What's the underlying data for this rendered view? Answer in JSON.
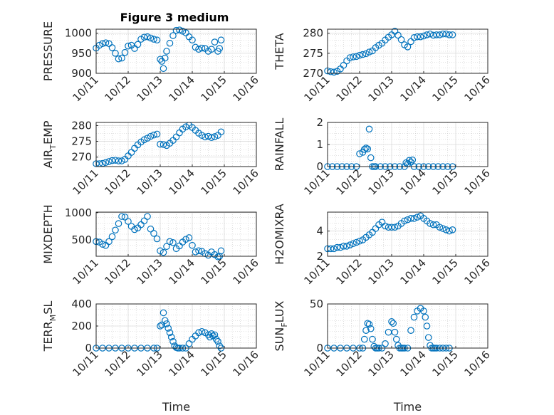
{
  "figure": {
    "title": "Figure 3 medium"
  },
  "marker_color": "#0072BD",
  "chart_data": [
    {
      "type": "scatter",
      "name": "pressure",
      "ylabel": "PRESSURE",
      "xlabel": "",
      "xlim": [
        0,
        5
      ],
      "ylim": [
        900,
        1010
      ],
      "yticks": [
        900,
        950,
        1000
      ],
      "xticks": [
        "10/11",
        "10/12",
        "10/13",
        "10/14",
        "10/15",
        "10/16"
      ],
      "x": [
        0.0,
        0.1,
        0.2,
        0.3,
        0.4,
        0.5,
        0.6,
        0.7,
        0.8,
        0.9,
        1.0,
        1.1,
        1.2,
        1.3,
        1.4,
        1.5,
        1.6,
        1.7,
        1.8,
        1.9,
        2.0,
        2.05,
        2.1,
        2.15,
        2.2,
        2.3,
        2.4,
        2.5,
        2.6,
        2.7,
        2.8,
        2.9,
        3.0,
        3.1,
        3.2,
        3.3,
        3.4,
        3.5,
        3.6,
        3.7,
        3.8,
        3.85,
        3.9
      ],
      "y": [
        963,
        970,
        974,
        976,
        974,
        964,
        950,
        936,
        938,
        952,
        968,
        970,
        962,
        972,
        985,
        990,
        991,
        988,
        985,
        983,
        935,
        930,
        912,
        938,
        955,
        975,
        994,
        1007,
        1008,
        1005,
        1001,
        991,
        983,
        965,
        960,
        963,
        962,
        955,
        960,
        978,
        955,
        962,
        983
      ]
    },
    {
      "type": "scatter",
      "name": "theta",
      "ylabel": "THETA",
      "xlabel": "",
      "xlim": [
        0,
        5
      ],
      "ylim": [
        270,
        281
      ],
      "yticks": [
        270,
        275,
        280
      ],
      "xticks": [
        "10/11",
        "10/12",
        "10/13",
        "10/14",
        "10/15",
        "10/16"
      ],
      "x": [
        0.0,
        0.1,
        0.2,
        0.3,
        0.4,
        0.5,
        0.6,
        0.7,
        0.8,
        0.9,
        1.0,
        1.1,
        1.2,
        1.3,
        1.4,
        1.5,
        1.6,
        1.7,
        1.8,
        1.9,
        2.0,
        2.1,
        2.2,
        2.3,
        2.4,
        2.5,
        2.6,
        2.7,
        2.8,
        2.9,
        3.0,
        3.1,
        3.2,
        3.3,
        3.4,
        3.5,
        3.6,
        3.7,
        3.8,
        3.9
      ],
      "y": [
        270.6,
        270.4,
        270.3,
        270.5,
        271.1,
        272.0,
        273.1,
        273.9,
        274.1,
        274.2,
        274.5,
        274.7,
        274.9,
        275.3,
        275.6,
        276.4,
        277.0,
        277.5,
        278.3,
        279.0,
        279.6,
        280.5,
        279.5,
        278.4,
        277.1,
        276.6,
        277.9,
        278.9,
        279.1,
        279.1,
        279.3,
        279.6,
        279.8,
        279.5,
        279.6,
        279.6,
        279.8,
        279.8,
        279.6,
        279.6
      ]
    },
    {
      "type": "scatter",
      "name": "air-temp",
      "ylabel": "AIR_TEMP",
      "xlabel": "",
      "xlim": [
        0,
        5
      ],
      "ylim": [
        267,
        281
      ],
      "yticks": [
        270,
        275,
        280
      ],
      "xticks": [
        "10/11",
        "10/12",
        "10/13",
        "10/14",
        "10/15",
        "10/16"
      ],
      "x": [
        0.0,
        0.1,
        0.2,
        0.3,
        0.4,
        0.5,
        0.6,
        0.7,
        0.8,
        0.9,
        1.0,
        1.1,
        1.2,
        1.3,
        1.4,
        1.5,
        1.6,
        1.7,
        1.8,
        1.9,
        2.0,
        2.1,
        2.2,
        2.3,
        2.4,
        2.5,
        2.6,
        2.7,
        2.8,
        2.9,
        3.0,
        3.1,
        3.2,
        3.3,
        3.4,
        3.5,
        3.6,
        3.7,
        3.8,
        3.9
      ],
      "y": [
        267.9,
        267.9,
        268.0,
        268.3,
        268.6,
        268.9,
        269.0,
        268.8,
        268.8,
        269.3,
        270.4,
        271.5,
        272.8,
        273.9,
        274.8,
        275.5,
        276.0,
        276.6,
        277.0,
        277.3,
        274.1,
        274.0,
        273.7,
        274.4,
        275.3,
        276.4,
        277.7,
        278.9,
        279.6,
        280.1,
        279.4,
        278.5,
        277.6,
        276.9,
        276.4,
        276.6,
        276.2,
        276.5,
        276.9,
        278.0
      ]
    },
    {
      "type": "scatter",
      "name": "rainfall",
      "ylabel": "RAINFALL",
      "xlabel": "",
      "xlim": [
        0,
        5
      ],
      "ylim": [
        0,
        2
      ],
      "yticks": [
        0,
        1,
        2
      ],
      "xticks": [
        "10/11",
        "10/12",
        "10/13",
        "10/14",
        "10/15",
        "10/16"
      ],
      "x": [
        0.0,
        0.15,
        0.3,
        0.45,
        0.6,
        0.75,
        0.9,
        1.0,
        1.1,
        1.15,
        1.2,
        1.25,
        1.3,
        1.35,
        1.4,
        1.45,
        1.5,
        1.65,
        1.8,
        1.95,
        2.1,
        2.25,
        2.4,
        2.45,
        2.5,
        2.55,
        2.6,
        2.65,
        2.7,
        2.85,
        3.0,
        3.15,
        3.3,
        3.45,
        3.6,
        3.75,
        3.9
      ],
      "y": [
        0,
        0,
        0,
        0,
        0,
        0,
        0,
        0.58,
        0.65,
        0.78,
        0.84,
        0.8,
        1.7,
        0.4,
        0,
        0,
        0,
        0,
        0,
        0,
        0,
        0,
        0,
        0.17,
        0.12,
        0.28,
        0.2,
        0.3,
        0,
        0,
        0,
        0,
        0,
        0,
        0,
        0,
        0
      ]
    },
    {
      "type": "scatter",
      "name": "mixdepth",
      "ylabel": "MIXDEPTH",
      "xlabel": "",
      "xlim": [
        0,
        5
      ],
      "ylim": [
        200,
        1010
      ],
      "yticks": [
        500,
        1000
      ],
      "xticks": [
        "10/11",
        "10/12",
        "10/13",
        "10/14",
        "10/15",
        "10/16"
      ],
      "x": [
        0.0,
        0.1,
        0.2,
        0.3,
        0.4,
        0.5,
        0.6,
        0.7,
        0.8,
        0.9,
        1.0,
        1.1,
        1.2,
        1.3,
        1.4,
        1.5,
        1.6,
        1.7,
        1.8,
        1.9,
        2.0,
        2.1,
        2.2,
        2.3,
        2.4,
        2.5,
        2.6,
        2.7,
        2.8,
        2.9,
        3.0,
        3.1,
        3.2,
        3.3,
        3.4,
        3.5,
        3.6,
        3.7,
        3.8,
        3.85,
        3.9
      ],
      "y": [
        470,
        460,
        420,
        400,
        470,
        560,
        680,
        800,
        930,
        920,
        840,
        750,
        690,
        720,
        780,
        850,
        930,
        700,
        620,
        520,
        300,
        270,
        380,
        470,
        450,
        340,
        390,
        460,
        510,
        540,
        400,
        280,
        300,
        290,
        250,
        220,
        280,
        230,
        190,
        200,
        300
      ]
    },
    {
      "type": "scatter",
      "name": "h2omixra",
      "ylabel": "H2OMIXRA",
      "xlabel": "",
      "xlim": [
        0,
        5
      ],
      "ylim": [
        2,
        5.5
      ],
      "yticks": [
        2,
        4
      ],
      "xticks": [
        "10/11",
        "10/12",
        "10/13",
        "10/14",
        "10/15",
        "10/16"
      ],
      "x": [
        0.0,
        0.1,
        0.2,
        0.3,
        0.4,
        0.5,
        0.6,
        0.7,
        0.8,
        0.9,
        1.0,
        1.1,
        1.2,
        1.3,
        1.4,
        1.5,
        1.6,
        1.7,
        1.8,
        1.9,
        2.0,
        2.1,
        2.2,
        2.3,
        2.4,
        2.5,
        2.6,
        2.7,
        2.8,
        2.9,
        3.0,
        3.1,
        3.2,
        3.3,
        3.4,
        3.5,
        3.6,
        3.7,
        3.8,
        3.9
      ],
      "y": [
        2.6,
        2.6,
        2.6,
        2.7,
        2.7,
        2.8,
        2.8,
        2.9,
        3.0,
        3.1,
        3.2,
        3.3,
        3.5,
        3.7,
        3.9,
        4.2,
        4.5,
        4.7,
        4.4,
        4.3,
        4.3,
        4.3,
        4.4,
        4.6,
        4.8,
        4.9,
        5.0,
        5.0,
        5.1,
        5.2,
        5.0,
        4.8,
        4.6,
        4.5,
        4.5,
        4.3,
        4.2,
        4.1,
        4.0,
        4.1
      ]
    },
    {
      "type": "scatter",
      "name": "terr-msl",
      "ylabel": "TERR_MSL",
      "xlabel": "Time",
      "xlim": [
        0,
        5
      ],
      "ylim": [
        0,
        400
      ],
      "yticks": [
        0,
        200,
        400
      ],
      "xticks": [
        "10/11",
        "10/12",
        "10/13",
        "10/14",
        "10/15",
        "10/16"
      ],
      "x": [
        0.0,
        0.2,
        0.4,
        0.6,
        0.8,
        1.0,
        1.2,
        1.4,
        1.6,
        1.8,
        1.9,
        2.0,
        2.05,
        2.1,
        2.15,
        2.2,
        2.25,
        2.3,
        2.35,
        2.4,
        2.45,
        2.5,
        2.55,
        2.6,
        2.7,
        2.8,
        2.9,
        3.0,
        3.1,
        3.2,
        3.3,
        3.4,
        3.5,
        3.55,
        3.6,
        3.65,
        3.7,
        3.75,
        3.8,
        3.85,
        3.9
      ],
      "y": [
        0,
        0,
        0,
        0,
        0,
        0,
        0,
        0,
        0,
        0,
        0,
        200,
        210,
        320,
        250,
        220,
        180,
        140,
        100,
        60,
        20,
        5,
        0,
        0,
        0,
        0,
        40,
        80,
        110,
        140,
        150,
        140,
        120,
        100,
        130,
        110,
        120,
        80,
        60,
        20,
        0
      ]
    },
    {
      "type": "scatter",
      "name": "sun-flux",
      "ylabel": "SUN_FLUX",
      "xlabel": "Time",
      "xlim": [
        0,
        5
      ],
      "ylim": [
        0,
        50
      ],
      "yticks": [
        0,
        50
      ],
      "xticks": [
        "10/11",
        "10/12",
        "10/13",
        "10/14",
        "10/15",
        "10/16"
      ],
      "x": [
        0.0,
        0.2,
        0.4,
        0.6,
        0.8,
        1.0,
        1.1,
        1.15,
        1.2,
        1.25,
        1.3,
        1.35,
        1.4,
        1.45,
        1.5,
        1.55,
        1.6,
        1.7,
        1.8,
        1.9,
        2.0,
        2.05,
        2.1,
        2.15,
        2.2,
        2.25,
        2.3,
        2.35,
        2.4,
        2.5,
        2.6,
        2.7,
        2.8,
        2.9,
        3.0,
        3.05,
        3.1,
        3.15,
        3.2,
        3.25,
        3.3,
        3.35,
        3.4,
        3.5,
        3.6,
        3.7,
        3.8
      ],
      "y": [
        0,
        0,
        0,
        0,
        0,
        0,
        0,
        10,
        20,
        28,
        27,
        22,
        10,
        2,
        0,
        0,
        0,
        0,
        5,
        18,
        30,
        28,
        18,
        10,
        3,
        0,
        0,
        0,
        0,
        0,
        20,
        35,
        42,
        45,
        42,
        35,
        25,
        12,
        3,
        0,
        0,
        0,
        0,
        0,
        0,
        0,
        0
      ]
    }
  ]
}
